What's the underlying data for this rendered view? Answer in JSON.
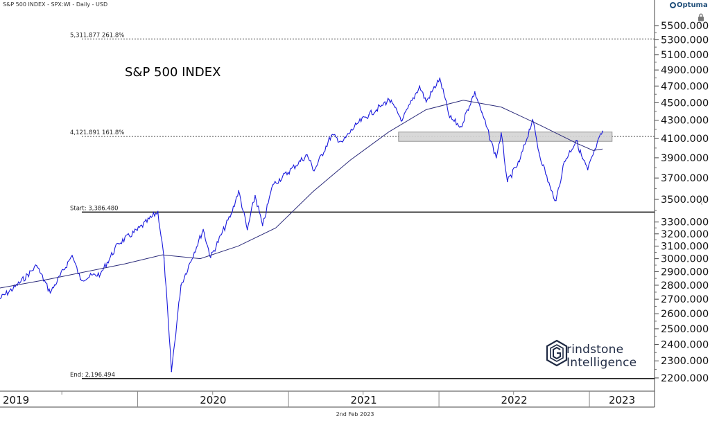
{
  "header": {
    "instrument": "S&P 500 INDEX - SPX:WI - Daily - USD"
  },
  "brand": {
    "name": "Optuma",
    "icon": "optuma-logo-icon"
  },
  "lock_icon": "lock-icon",
  "watermark": {
    "line1": "rindstone",
    "line2": "Intelligence",
    "icon": "grindstone-g-logo-icon"
  },
  "footer": {
    "date": "2nd Feb 2023"
  },
  "colors": {
    "price": "#1a1adc",
    "ma": "#2b2b7a",
    "fib_line": "#555555",
    "hline": "#000000",
    "zone_fill": "#d4d4d4",
    "zone_stroke": "#888888"
  },
  "chart_data": {
    "type": "line",
    "title": "S&P 500 INDEX",
    "y_scale": "log",
    "ylim": [
      2180,
      5650
    ],
    "y_ticks": [
      2200,
      2300,
      2400,
      2500,
      2600,
      2700,
      2800,
      2900,
      3000,
      3100,
      3200,
      3300,
      3500,
      3700,
      3900,
      4100,
      4300,
      4500,
      4700,
      4900,
      5100,
      5300,
      5500
    ],
    "y_tick_labels": [
      "2200.000",
      "2300.000",
      "2400.000",
      "2500.000",
      "2600.000",
      "2700.000",
      "2800.000",
      "2900.000",
      "3000.000",
      "3100.000",
      "3200.000",
      "3300.000",
      "3500.000",
      "3700.000",
      "3900.000",
      "4100.000",
      "4300.000",
      "4500.000",
      "4700.000",
      "4900.000",
      "5100.000",
      "5300.000",
      "5500.000"
    ],
    "xlim": [
      "2019-02-01",
      "2023-06-08"
    ],
    "x_ticks": [
      "2019-01-01",
      "2020-01-01",
      "2021-01-01",
      "2022-01-01",
      "2023-01-01"
    ],
    "x_tick_labels": [
      "2019",
      "2020",
      "2021",
      "2022",
      "2023"
    ],
    "series": [
      {
        "kind": "price",
        "x": [
          "2019-02-01",
          "2019-03-15",
          "2019-05-01",
          "2019-06-03",
          "2019-07-26",
          "2019-08-15",
          "2019-10-03",
          "2019-11-15",
          "2019-12-31",
          "2020-02-19",
          "2020-03-05",
          "2020-03-23",
          "2020-04-15",
          "2020-06-08",
          "2020-06-26",
          "2020-08-15",
          "2020-09-02",
          "2020-09-23",
          "2020-10-12",
          "2020-10-30",
          "2020-11-24",
          "2020-12-31",
          "2021-02-15",
          "2021-03-04",
          "2021-04-15",
          "2021-05-12",
          "2021-06-15",
          "2021-07-15",
          "2021-08-15",
          "2021-09-02",
          "2021-10-04",
          "2021-11-15",
          "2021-12-01",
          "2022-01-03",
          "2022-01-27",
          "2022-02-23",
          "2022-03-29",
          "2022-04-15",
          "2022-05-20",
          "2022-06-01",
          "2022-06-16",
          "2022-07-15",
          "2022-08-16",
          "2022-09-01",
          "2022-09-30",
          "2022-10-12",
          "2022-11-01",
          "2022-11-30",
          "2022-12-15",
          "2022-12-28",
          "2023-01-15",
          "2023-02-02"
        ],
        "y": [
          2705,
          2800,
          2945,
          2745,
          3025,
          2845,
          2885,
          3120,
          3230,
          3390,
          3005,
          2237,
          2800,
          3235,
          3010,
          3370,
          3580,
          3235,
          3535,
          3270,
          3635,
          3755,
          3930,
          3770,
          4135,
          4065,
          4255,
          4360,
          4470,
          4535,
          4300,
          4700,
          4510,
          4795,
          4330,
          4230,
          4630,
          4390,
          3900,
          4160,
          3665,
          3860,
          4305,
          3950,
          3585,
          3490,
          3860,
          4080,
          3895,
          3780,
          3990,
          4180
        ]
      },
      {
        "kind": "ma",
        "x": [
          "2019-02-01",
          "2019-06-01",
          "2019-12-01",
          "2020-03-01",
          "2020-06-01",
          "2020-09-01",
          "2020-12-01",
          "2021-03-01",
          "2021-06-01",
          "2021-09-01",
          "2021-12-01",
          "2022-03-01",
          "2022-06-01",
          "2022-09-01",
          "2022-12-01",
          "2023-01-10",
          "2023-02-02"
        ],
        "y": [
          2780,
          2845,
          2960,
          3030,
          3000,
          3100,
          3250,
          3570,
          3880,
          4170,
          4420,
          4530,
          4450,
          4250,
          4050,
          3975,
          3990
        ]
      }
    ],
    "annotations": [
      {
        "type": "fib",
        "value": 5311.877,
        "text": "5,311.877   261.8%",
        "style": "dashed"
      },
      {
        "type": "fib",
        "value": 4121.891,
        "text": "4,121.891   161.8%",
        "style": "dashed"
      },
      {
        "type": "hline",
        "value": 3386.48,
        "text": "Start:   3,386.480"
      },
      {
        "type": "hline",
        "value": 2196.494,
        "text": "End:   2,196.494"
      },
      {
        "type": "zone",
        "y_range": [
          4070,
          4170
        ],
        "x_range": [
          "2021-09-25",
          "2023-02-25"
        ]
      }
    ]
  }
}
